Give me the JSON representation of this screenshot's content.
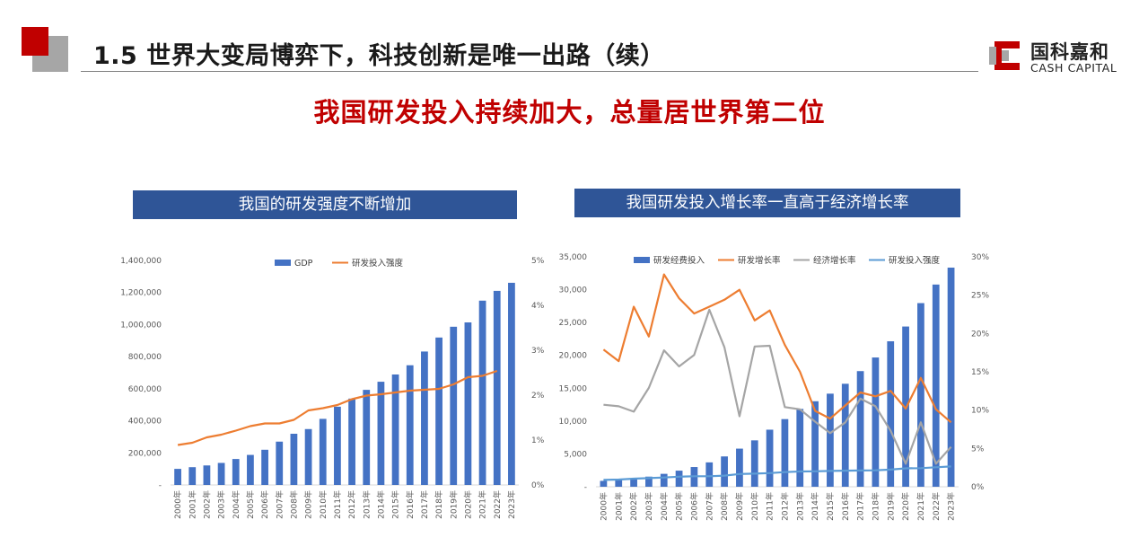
{
  "header": {
    "title": "1.5 世界大变局博弈下，科技创新是唯一出路（续）",
    "subtitle": "我国研发投入持续加大，总量居世界第二位",
    "logo_cn": "国科嘉和",
    "logo_en": "CASH CAPITAL",
    "accent_color": "#c00000",
    "panel_color": "#2f5597"
  },
  "chart_data": [
    {
      "type": "bar",
      "panel_title": "我国的研发强度不断增加",
      "categories": [
        "2000年",
        "2001年",
        "2002年",
        "2003年",
        "2004年",
        "2005年",
        "2006年",
        "2007年",
        "2008年",
        "2009年",
        "2010年",
        "2011年",
        "2012年",
        "2013年",
        "2014年",
        "2015年",
        "2016年",
        "2017年",
        "2018年",
        "2019年",
        "2020年",
        "2021年",
        "2022年",
        "2023年"
      ],
      "series": [
        {
          "name": "GDP",
          "type": "bar",
          "axis": "left",
          "color": "#4472c4",
          "values": [
            100280,
            110863,
            121717,
            137422,
            161840,
            187319,
            219438,
            270092,
            319245,
            348518,
            412119,
            487940,
            538580,
            592963,
            643563,
            688858,
            746395,
            832036,
            919281,
            986515,
            1013567,
            1149237,
            1210207,
            1260582
          ]
        },
        {
          "name": "研发投入强度",
          "type": "line",
          "axis": "right",
          "color": "#ed7d31",
          "values": [
            0.89,
            0.94,
            1.06,
            1.12,
            1.21,
            1.31,
            1.37,
            1.37,
            1.45,
            1.66,
            1.71,
            1.78,
            1.91,
            1.99,
            2.02,
            2.06,
            2.1,
            2.12,
            2.14,
            2.24,
            2.4,
            2.43,
            2.54,
            null
          ]
        }
      ],
      "left_axis": {
        "min": 0,
        "max": 1400000,
        "ticks": [
          "-",
          "200,000",
          "400,000",
          "600,000",
          "800,000",
          "1,000,000",
          "1,200,000",
          "1,400,000"
        ]
      },
      "right_axis": {
        "min": 0,
        "max": 5,
        "ticks": [
          "0%",
          "1%",
          "2%",
          "3%",
          "4%",
          "5%"
        ]
      },
      "legend_position": "top-center",
      "grid": false
    },
    {
      "type": "bar",
      "panel_title": "我国研发投入增长率一直高于经济增长率",
      "categories": [
        "2000年",
        "2001年",
        "2002年",
        "2003年",
        "2004年",
        "2005年",
        "2006年",
        "2007年",
        "2008年",
        "2009年",
        "2010年",
        "2011年",
        "2012年",
        "2013年",
        "2014年",
        "2015年",
        "2016年",
        "2017年",
        "2018年",
        "2019年",
        "2020年",
        "2021年",
        "2022年",
        "2023年"
      ],
      "series": [
        {
          "name": "研发经费投入",
          "type": "bar",
          "axis": "left",
          "color": "#4472c4",
          "values": [
            896,
            1043,
            1288,
            1540,
            1966,
            2450,
            3003,
            3710,
            4616,
            5802,
            7063,
            8687,
            10298,
            11847,
            13016,
            14170,
            15677,
            17606,
            19678,
            22144,
            24393,
            27956,
            30783,
            33357
          ]
        },
        {
          "name": "研发增长率",
          "type": "line",
          "axis": "right",
          "color": "#ed7d31",
          "values": [
            17.9,
            16.4,
            23.5,
            19.6,
            27.7,
            24.6,
            22.6,
            23.5,
            24.4,
            25.7,
            21.7,
            23.0,
            18.5,
            15.0,
            9.9,
            8.9,
            10.6,
            12.3,
            11.8,
            12.5,
            10.2,
            14.2,
            10.1,
            8.4
          ]
        },
        {
          "name": "经济增长率",
          "type": "line",
          "axis": "right",
          "color": "#a5a5a5",
          "values": [
            10.7,
            10.5,
            9.8,
            12.9,
            17.8,
            15.7,
            17.2,
            23.1,
            18.2,
            9.2,
            18.3,
            18.4,
            10.4,
            10.1,
            8.5,
            7.0,
            8.4,
            11.5,
            10.5,
            7.3,
            3.0,
            8.4,
            3.0,
            5.2
          ]
        },
        {
          "name": "研发投入强度",
          "type": "line",
          "axis": "right",
          "color": "#5b9bd5",
          "values": [
            0.89,
            0.94,
            1.06,
            1.12,
            1.21,
            1.31,
            1.37,
            1.37,
            1.45,
            1.66,
            1.71,
            1.78,
            1.91,
            1.99,
            2.02,
            2.06,
            2.1,
            2.12,
            2.14,
            2.24,
            2.4,
            2.43,
            2.54,
            2.65
          ]
        }
      ],
      "left_axis": {
        "min": 0,
        "max": 35000,
        "ticks": [
          "-",
          "5,000",
          "10,000",
          "15,000",
          "20,000",
          "25,000",
          "30,000",
          "35,000"
        ]
      },
      "right_axis": {
        "min": 0,
        "max": 30,
        "ticks": [
          "0%",
          "5%",
          "10%",
          "15%",
          "20%",
          "25%",
          "30%"
        ]
      },
      "legend_position": "top-center",
      "grid": false
    }
  ]
}
